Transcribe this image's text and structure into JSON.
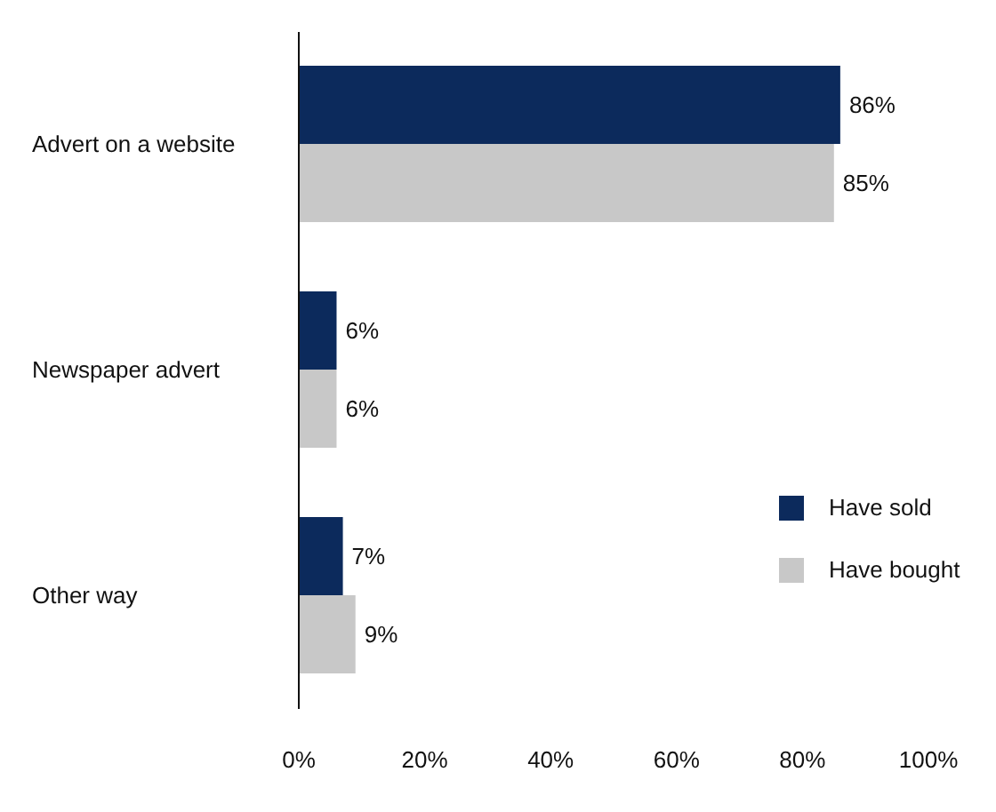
{
  "chart_data": {
    "type": "bar",
    "orientation": "horizontal",
    "categories": [
      "Advert on a website",
      "Newspaper advert",
      "Other way"
    ],
    "series": [
      {
        "name": "Have sold",
        "color": "#0c2a5c",
        "values": [
          86,
          6,
          7
        ],
        "value_labels": [
          "86%",
          "6%",
          "7%"
        ]
      },
      {
        "name": "Have bought",
        "color": "#c8c8c8",
        "values": [
          85,
          6,
          9
        ],
        "value_labels": [
          "85%",
          "6%",
          "9%"
        ]
      }
    ],
    "xlim": [
      0,
      100
    ],
    "xticks": [
      {
        "value": 0,
        "label": "0%"
      },
      {
        "value": 20,
        "label": "20%"
      },
      {
        "value": 40,
        "label": "40%"
      },
      {
        "value": 60,
        "label": "60%"
      },
      {
        "value": 80,
        "label": "80%"
      },
      {
        "value": 100,
        "label": "100%"
      }
    ],
    "grid": false,
    "legend": "right"
  }
}
